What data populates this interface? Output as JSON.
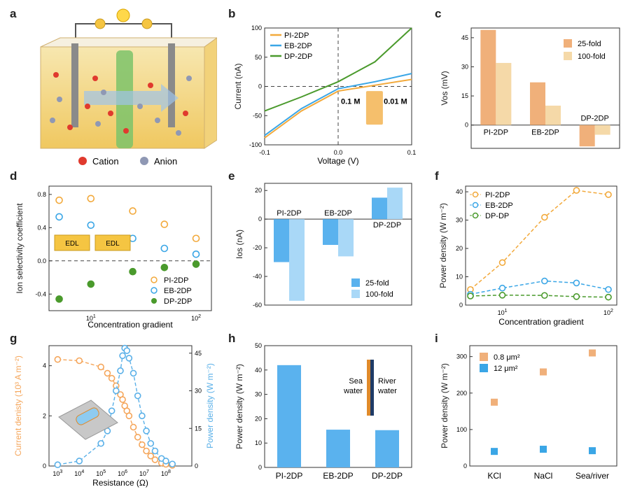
{
  "panels": {
    "a": {
      "label": "a",
      "legend": {
        "cation": "Cation",
        "anion": "Anion"
      },
      "colors": {
        "cation": "#e03a2e",
        "anion": "#8f98b4"
      }
    },
    "b": {
      "label": "b"
    },
    "c": {
      "label": "c"
    },
    "d": {
      "label": "d",
      "inset": {
        "edl_left": "EDL",
        "edl_right": "EDL"
      }
    },
    "e": {
      "label": "e"
    },
    "f": {
      "label": "f"
    },
    "g": {
      "label": "g"
    },
    "h": {
      "label": "h",
      "inset": {
        "left_line1": "Sea",
        "left_line2": "water",
        "right_line1": "River",
        "right_line2": "water"
      }
    },
    "i": {
      "label": "i"
    }
  },
  "colors": {
    "pi": "#f2a93b",
    "eb": "#3aa6e6",
    "dp": "#4a9a2c",
    "orange_bar": "#f0b07a",
    "orange_bar_light": "#f5d9a8",
    "blue_bar": "#5ab2ee",
    "blue_bar_light": "#a9d8f7",
    "g_orange": "#f5a65b",
    "g_blue": "#5ab0e8"
  },
  "chart_data": [
    {
      "id": "b",
      "type": "line",
      "title": "",
      "xlabel": "Voltage (V)",
      "ylabel": "Current (nA)",
      "xlim": [
        -0.1,
        0.1
      ],
      "ylim": [
        -100,
        100
      ],
      "xticks": [
        "-0.1",
        "0.0",
        "0.1"
      ],
      "yticks": [
        "-100",
        "-50",
        "0",
        "50",
        "100"
      ],
      "x": [
        -0.1,
        -0.05,
        0,
        0.05,
        0.1
      ],
      "series": [
        {
          "name": "PI-2DP",
          "values": [
            -88,
            -42,
            -8,
            2,
            12
          ]
        },
        {
          "name": "EB-2DP",
          "values": [
            -84,
            -38,
            -4,
            8,
            22
          ]
        },
        {
          "name": "DP-2DP",
          "values": [
            -42,
            -18,
            8,
            42,
            100
          ]
        }
      ],
      "annotations": [
        "0.1 M",
        "0.01 M"
      ]
    },
    {
      "id": "c",
      "type": "bar",
      "xlabel": "",
      "ylabel": "Vos (mV)",
      "ylim": [
        -12,
        50
      ],
      "yticks": [
        "0",
        "15",
        "30",
        "45"
      ],
      "categories": [
        "PI-2DP",
        "EB-2DP",
        "DP-2DP"
      ],
      "series": [
        {
          "name": "25-fold",
          "values": [
            49,
            22,
            -11
          ]
        },
        {
          "name": "100-fold",
          "values": [
            32,
            10,
            -5
          ]
        }
      ]
    },
    {
      "id": "d",
      "type": "scatter",
      "xlabel": "Concentration gradient",
      "ylabel": "Ion selectivity coefficient",
      "xscale": "log",
      "xlim": [
        4,
        140
      ],
      "ylim": [
        -0.6,
        0.9
      ],
      "yticks": [
        "-0.4",
        "0.0",
        "0.4",
        "0.8"
      ],
      "xticks": [
        "10",
        "10"
      ],
      "xtick_sup": [
        "1",
        "2"
      ],
      "x": [
        5,
        10,
        25,
        50,
        100
      ],
      "series": [
        {
          "name": "PI-2DP",
          "values": [
            0.73,
            0.75,
            0.6,
            0.44,
            0.27
          ]
        },
        {
          "name": "EB-2DP",
          "values": [
            0.53,
            0.43,
            0.27,
            0.15,
            0.08
          ]
        },
        {
          "name": "DP-2DP",
          "values": [
            -0.46,
            -0.28,
            -0.13,
            -0.08,
            -0.04
          ]
        }
      ]
    },
    {
      "id": "e",
      "type": "bar",
      "xlabel": "",
      "ylabel": "Ios (nA)",
      "ylim": [
        -60,
        25
      ],
      "yticks": [
        "20",
        "0",
        "-20",
        "-40",
        "-60"
      ],
      "categories": [
        "PI-2DP",
        "EB-2DP",
        "DP-2DP"
      ],
      "series": [
        {
          "name": "25-fold",
          "values": [
            -30,
            -18,
            15
          ]
        },
        {
          "name": "100-fold",
          "values": [
            -57,
            -26,
            22
          ]
        }
      ]
    },
    {
      "id": "f",
      "type": "line",
      "xlabel": "Concentration gradient",
      "ylabel": "Power density (W m⁻²)",
      "xscale": "log",
      "xlim": [
        4.5,
        120
      ],
      "ylim": [
        0,
        42
      ],
      "yticks": [
        "0",
        "10",
        "20",
        "30",
        "40"
      ],
      "xticks": [
        "10",
        "10"
      ],
      "xtick_sup": [
        "1",
        "2"
      ],
      "x": [
        5,
        10,
        25,
        50,
        100
      ],
      "series": [
        {
          "name": "PI-2DP",
          "values": [
            5.5,
            15,
            31,
            40.5,
            39
          ]
        },
        {
          "name": "EB-2DP",
          "values": [
            3.8,
            6,
            8.5,
            7.8,
            5.5
          ]
        },
        {
          "name": "DP-DP",
          "values": [
            3.2,
            3.5,
            3.4,
            3.0,
            2.8
          ]
        }
      ]
    },
    {
      "id": "g",
      "type": "line",
      "xlabel": "Resistance (Ω)",
      "ylabel": "Current denisty (10³ A m⁻²)",
      "y2label": "Power density (W m⁻²)",
      "xscale": "log",
      "xlim": [
        2.6,
        9.2
      ],
      "ylim": [
        0,
        4.8
      ],
      "y2lim": [
        0,
        48
      ],
      "yticks": [
        "0",
        "2",
        "4"
      ],
      "y2ticks": [
        "0",
        "15",
        "30",
        "45"
      ],
      "xticks": [
        "10",
        "10",
        "10",
        "10",
        "10",
        "10",
        "10"
      ],
      "xtick_sup": [
        "3",
        "4",
        "5",
        "6",
        "7",
        "8"
      ],
      "x": [
        3,
        4,
        5,
        5.3,
        5.5,
        5.7,
        5.9,
        6.0,
        6.1,
        6.2,
        6.3,
        6.5,
        6.7,
        6.9,
        7.1,
        7.3,
        7.5,
        7.8,
        8.0,
        8.3
      ],
      "series": [
        {
          "name": "Current density",
          "values": [
            4.25,
            4.2,
            3.95,
            3.7,
            3.5,
            3.2,
            2.85,
            2.65,
            2.4,
            2.2,
            2.0,
            1.55,
            1.15,
            0.85,
            0.6,
            0.4,
            0.25,
            0.12,
            0.07,
            0.03
          ]
        },
        {
          "name": "Power density",
          "values": [
            0.5,
            2,
            9,
            14,
            22,
            30,
            38,
            44,
            47,
            46,
            43,
            37,
            28,
            20,
            14,
            9,
            6,
            3,
            2,
            0.8
          ]
        }
      ]
    },
    {
      "id": "h",
      "type": "bar",
      "xlabel": "",
      "ylabel": "Power density (W m⁻²)",
      "ylim": [
        0,
        50
      ],
      "yticks": [
        "0",
        "10",
        "20",
        "30",
        "40",
        "50"
      ],
      "categories": [
        "PI-2DP",
        "EB-2DP",
        "DP-2DP"
      ],
      "series": [
        {
          "name": "Power density",
          "values": [
            42,
            15.5,
            15.3
          ]
        }
      ]
    },
    {
      "id": "i",
      "type": "scatter",
      "xlabel": "",
      "ylabel": "Power density (W m⁻²)",
      "ylim": [
        0,
        330
      ],
      "yticks": [
        "0",
        "100",
        "200",
        "300"
      ],
      "categories": [
        "KCl",
        "NaCl",
        "Sea/river"
      ],
      "series": [
        {
          "name": "0.8 μm²",
          "values": [
            175,
            258,
            310
          ]
        },
        {
          "name": "12 μm²",
          "values": [
            40,
            46,
            42
          ]
        }
      ]
    }
  ]
}
